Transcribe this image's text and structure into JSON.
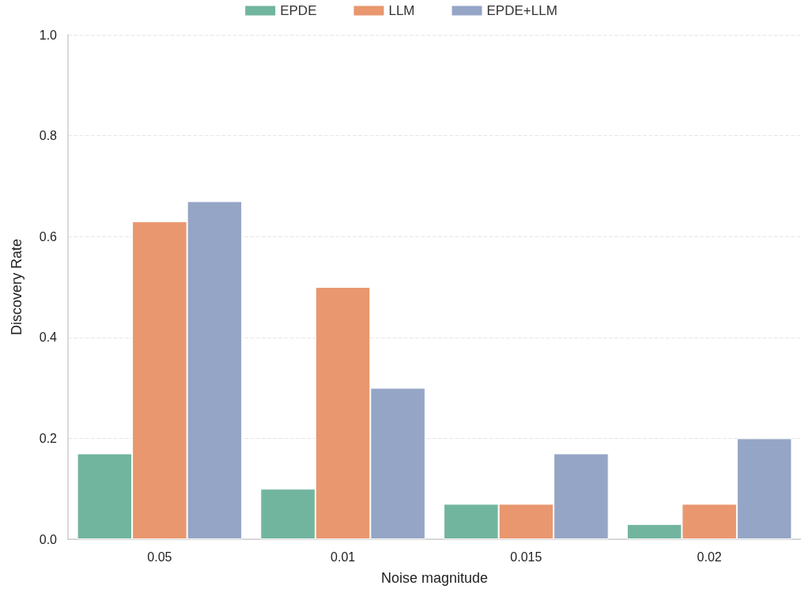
{
  "chart_data": {
    "type": "bar",
    "xlabel": "Noise magnitude",
    "ylabel": "Discovery Rate",
    "categories": [
      "0.05",
      "0.01",
      "0.015",
      "0.02"
    ],
    "series": [
      {
        "name": "EPDE",
        "color": "#72b59e",
        "values": [
          0.17,
          0.1,
          0.07,
          0.03
        ]
      },
      {
        "name": "LLM",
        "color": "#e9976f",
        "values": [
          0.63,
          0.5,
          0.07,
          0.07
        ]
      },
      {
        "name": "EPDE+LLM",
        "color": "#95a5c6",
        "values": [
          0.67,
          0.3,
          0.17,
          0.2
        ]
      }
    ],
    "ylim": [
      0,
      1
    ],
    "yticks": [
      {
        "value": 0,
        "label": "0.0"
      },
      0.2,
      0.4,
      0.6,
      0.8,
      {
        "value": 1,
        "label": "1.0"
      }
    ],
    "grid": "y",
    "legend": "top",
    "line_style": "dashed"
  }
}
